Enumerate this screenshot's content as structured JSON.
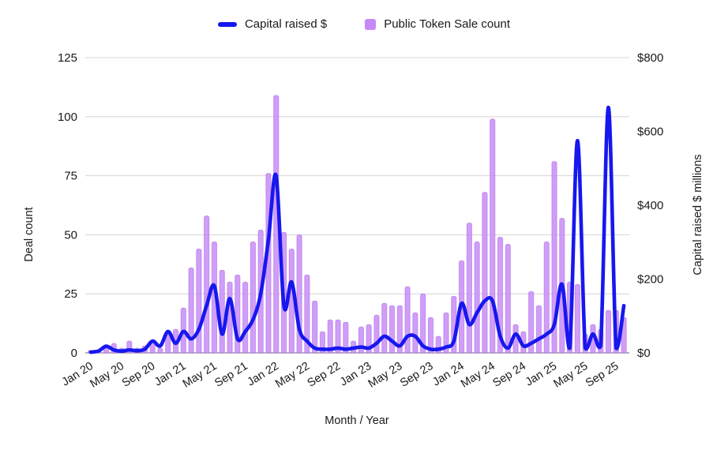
{
  "legend": {
    "line_label": "Capital raised $",
    "bar_label": "Public Token Sale count"
  },
  "chart_data": {
    "type": "bar+line dual-axis",
    "xlabel": "Month / Year",
    "legend_position": "top-center",
    "grid": "horizontal only",
    "left_axis": {
      "label": "Deal count",
      "ticks": [
        0,
        25,
        50,
        75,
        100,
        125
      ],
      "max": 125
    },
    "right_axis": {
      "label": "Capital raised $ millions",
      "ticks": [
        "$0",
        "$200",
        "$400",
        "$600",
        "$800"
      ],
      "tick_values": [
        0,
        200,
        400,
        600,
        800
      ],
      "max": 800
    },
    "x_tick_every": 4,
    "categories": [
      "Jan 20",
      "Feb 20",
      "Mar 20",
      "Apr 20",
      "May 20",
      "Jun 20",
      "Jul 20",
      "Aug 20",
      "Sep 20",
      "Oct 20",
      "Nov 20",
      "Dec 20",
      "Jan 21",
      "Feb 21",
      "Mar 21",
      "Apr 21",
      "May 21",
      "Jun 21",
      "Jul 21",
      "Aug 21",
      "Sep 21",
      "Oct 21",
      "Nov 21",
      "Dec 21",
      "Jan 22",
      "Feb 22",
      "Mar 22",
      "Apr 22",
      "May 22",
      "Jun 22",
      "Jul 22",
      "Aug 22",
      "Sep 22",
      "Oct 22",
      "Nov 22",
      "Dec 22",
      "Jan 23",
      "Feb 23",
      "Mar 23",
      "Apr 23",
      "May 23",
      "Jun 23",
      "Jul 23",
      "Aug 23",
      "Sep 23",
      "Oct 23",
      "Nov 23",
      "Dec 23",
      "Jan 24",
      "Feb 24",
      "Mar 24",
      "Apr 24",
      "May 24",
      "Jun 24",
      "Jul 24",
      "Aug 24",
      "Sep 24",
      "Oct 24",
      "Nov 24",
      "Dec 24",
      "Jan 25",
      "Feb 25",
      "Mar 25",
      "Apr 25",
      "May 25",
      "Jun 25",
      "Jul 25",
      "Aug 25",
      "Sep 25",
      "Oct 25"
    ],
    "series": [
      {
        "name": "Public Token Sale count",
        "type": "bar",
        "axis": "left",
        "color": "#c689f7",
        "values": [
          1,
          1,
          3,
          4,
          2,
          5,
          2,
          3,
          5,
          2,
          8,
          10,
          19,
          36,
          44,
          58,
          47,
          35,
          30,
          33,
          30,
          47,
          52,
          76,
          109,
          51,
          44,
          50,
          33,
          22,
          9,
          14,
          14,
          13,
          5,
          11,
          12,
          16,
          21,
          20,
          20,
          28,
          17,
          25,
          15,
          7,
          17,
          24,
          39,
          55,
          47,
          68,
          99,
          49,
          46,
          12,
          9,
          26,
          20,
          47,
          81,
          57,
          30,
          29,
          8,
          12,
          10,
          18,
          18,
          15
        ]
      },
      {
        "name": "Capital raised $",
        "type": "line",
        "axis": "right",
        "color": "#1717ee",
        "values": [
          2,
          5,
          18,
          8,
          5,
          8,
          6,
          10,
          32,
          19,
          58,
          26,
          58,
          38,
          64,
          128,
          182,
          51,
          147,
          38,
          58,
          90,
          160,
          307,
          480,
          128,
          192,
          64,
          32,
          13,
          10,
          10,
          13,
          10,
          13,
          16,
          13,
          26,
          45,
          32,
          19,
          45,
          45,
          19,
          10,
          10,
          16,
          32,
          134,
          77,
          109,
          141,
          141,
          45,
          13,
          51,
          19,
          26,
          38,
          51,
          77,
          186,
          13,
          575,
          13,
          51,
          19,
          665,
          13,
          128
        ]
      }
    ],
    "colors": {
      "line": "#1717ee",
      "bar": "#c689f7",
      "grid": "#dadada",
      "baseline": "#8a8a8a",
      "text": "#1a1a1a"
    }
  }
}
